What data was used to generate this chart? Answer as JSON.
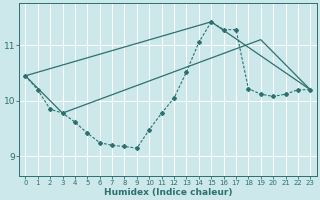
{
  "xlabel": "Humidex (Indice chaleur)",
  "bg_color": "#cce8ea",
  "grid_color": "#ffffff",
  "line_color": "#2d7070",
  "xlim": [
    -0.5,
    23.5
  ],
  "ylim": [
    8.65,
    11.75
  ],
  "yticks": [
    9,
    10,
    11
  ],
  "xticks": [
    0,
    1,
    2,
    3,
    4,
    5,
    6,
    7,
    8,
    9,
    10,
    11,
    12,
    13,
    14,
    15,
    16,
    17,
    18,
    19,
    20,
    21,
    22,
    23
  ],
  "line1_x": [
    0,
    1,
    2,
    3,
    4,
    5,
    6,
    7,
    8,
    9,
    10,
    11,
    12,
    13,
    14,
    15,
    16,
    17,
    18,
    19,
    20,
    21,
    22,
    23
  ],
  "line1_y": [
    10.45,
    10.2,
    9.85,
    9.78,
    9.62,
    9.42,
    9.25,
    9.2,
    9.18,
    9.15,
    9.48,
    9.78,
    10.05,
    10.52,
    11.05,
    11.42,
    11.28,
    11.28,
    10.22,
    10.12,
    10.08,
    10.12,
    10.2,
    10.2
  ],
  "line2_x": [
    0,
    15,
    23
  ],
  "line2_y": [
    10.45,
    11.42,
    10.2
  ],
  "line3_x": [
    3,
    19,
    23
  ],
  "line3_y": [
    9.78,
    11.1,
    10.2
  ],
  "line4_x": [
    0,
    3
  ],
  "line4_y": [
    10.45,
    9.78
  ]
}
